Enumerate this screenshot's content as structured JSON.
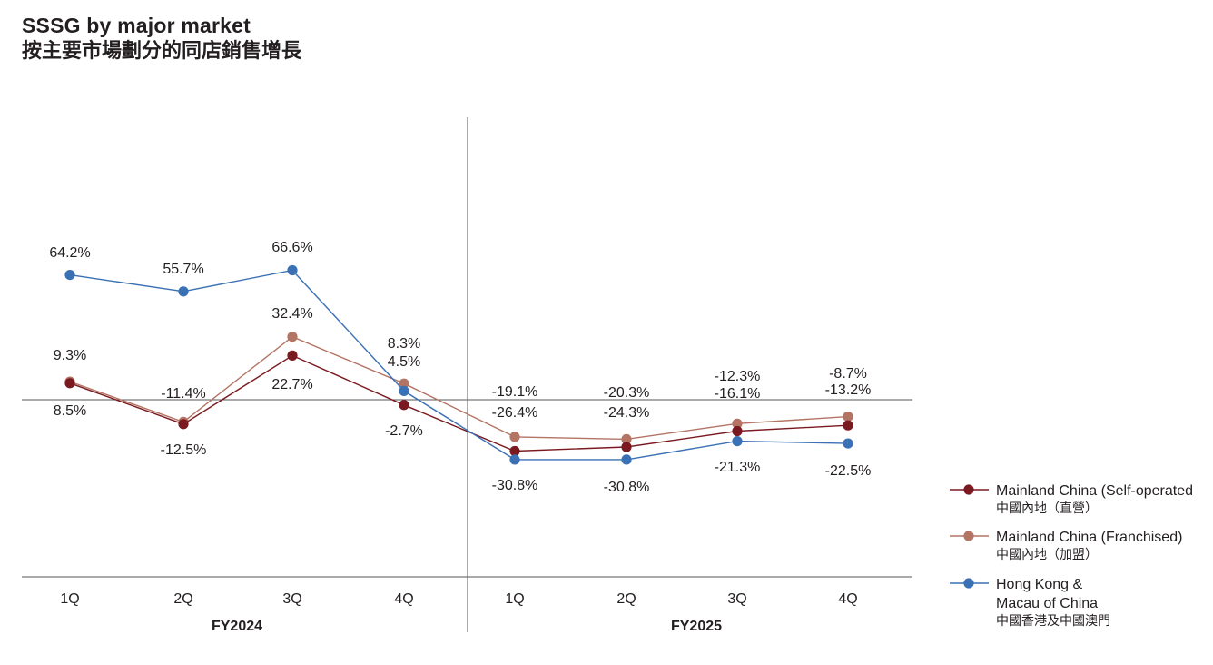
{
  "header": {
    "title": "SSSG by major market",
    "subtitle": "按主要市場劃分的同店銷售增長"
  },
  "colors": {
    "self_operated": "#7a1a20",
    "franchised": "#b37464",
    "hong_kong_macau": "#3a70b4",
    "axis": "#555555"
  },
  "chart_data": {
    "type": "line",
    "categories": [
      "1Q",
      "2Q",
      "3Q",
      "4Q",
      "1Q",
      "2Q",
      "3Q",
      "4Q"
    ],
    "groups": [
      {
        "label": "FY2024",
        "categories": [
          "1Q",
          "2Q",
          "3Q",
          "4Q"
        ]
      },
      {
        "label": "FY2025",
        "categories": [
          "1Q",
          "2Q",
          "3Q",
          "4Q"
        ]
      }
    ],
    "series": [
      {
        "key": "self_operated",
        "name": "Mainland China (Self-operated",
        "name_zh": "中國內地（直營）",
        "values": [
          8.5,
          -12.5,
          22.7,
          -2.7,
          -26.4,
          -24.3,
          -16.1,
          -13.2
        ],
        "labels": [
          "8.5%",
          "-12.5%",
          "22.7%",
          "-2.7%",
          "-26.4%",
          "-24.3%",
          "-16.1%",
          "-13.2%"
        ]
      },
      {
        "key": "franchised",
        "name": "Mainland China (Franchised)",
        "name_zh": "中國內地（加盟）",
        "values": [
          9.3,
          -11.4,
          32.4,
          8.3,
          -19.1,
          -20.3,
          -12.3,
          -8.7
        ],
        "labels": [
          "9.3%",
          "-11.4%",
          "32.4%",
          "8.3%",
          "-19.1%",
          "-20.3%",
          "-12.3%",
          "-8.7%"
        ]
      },
      {
        "key": "hong_kong_macau",
        "name": "Hong Kong & Macau of China",
        "name_lines": [
          "Hong Kong &",
          "Macau of China"
        ],
        "name_zh": "中國香港及中國澳門",
        "values": [
          64.2,
          55.7,
          66.6,
          4.5,
          -30.8,
          -30.8,
          -21.3,
          -22.5
        ],
        "labels": [
          "64.2%",
          "55.7%",
          "66.6%",
          "4.5%",
          "-30.8%",
          "-30.8%",
          "-21.3%",
          "-22.5%"
        ]
      }
    ],
    "ylim": [
      -90,
      150
    ],
    "grid": false,
    "legend_position": "right"
  }
}
